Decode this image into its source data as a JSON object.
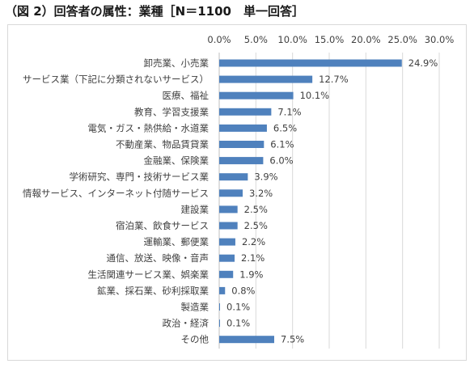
{
  "header": {
    "title": "（図 2）回答者の属性：業種［N＝1100　単一回答］"
  },
  "colors": {
    "bar": "#4f81bd",
    "grid": "#d9d9d9",
    "text": "#404040"
  },
  "chart_data": {
    "type": "bar",
    "orientation": "horizontal",
    "categories": [
      "卸売業、小売業",
      "サービス業（下記に分類されないサービス）",
      "医療、福祉",
      "教育、学習支援業",
      "電気・ガス・熱供給・水道業",
      "不動産業、物品賃貸業",
      "金融業、保険業",
      "学術研究、専門・技術サービス業",
      "情報サービス、インターネット付随サービス",
      "建設業",
      "宿泊業、飲食サービス",
      "運輸業、郵便業",
      "通信、放送、映像・音声",
      "生活関連サービス業、娯楽業",
      "鉱業、採石業、砂利採取業",
      "製造業",
      "政治・経済",
      "その他"
    ],
    "values": [
      24.9,
      12.7,
      10.1,
      7.1,
      6.5,
      6.1,
      6.0,
      3.9,
      3.2,
      2.5,
      2.5,
      2.2,
      2.1,
      1.9,
      0.8,
      0.1,
      0.1,
      7.5
    ],
    "value_labels": [
      "24.9%",
      "12.7%",
      "10.1%",
      "7.1%",
      "6.5%",
      "6.1%",
      "6.0%",
      "3.9%",
      "3.2%",
      "2.5%",
      "2.5%",
      "2.2%",
      "2.1%",
      "1.9%",
      "0.8%",
      "0.1%",
      "0.1%",
      "7.5%"
    ],
    "xlim": [
      0,
      30
    ],
    "x_ticks": [
      0,
      5,
      10,
      15,
      20,
      25,
      30
    ],
    "x_tick_labels": [
      "0.0%",
      "5.0%",
      "10.0%",
      "15.0%",
      "20.0%",
      "25.0%",
      "30.0%"
    ],
    "x_axis_position": "top",
    "grid": true,
    "legend": "none",
    "title": "",
    "xlabel": "",
    "ylabel": ""
  }
}
